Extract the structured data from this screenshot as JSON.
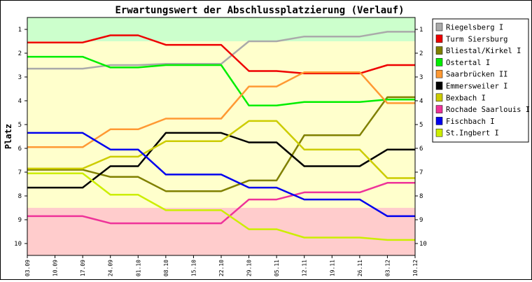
{
  "chart_data": {
    "type": "line",
    "title": "Erwartungswert der Abschlussplatzierung (Verlauf)",
    "xlabel": "",
    "ylabel": "Platz",
    "categories": [
      "03.09",
      "10.09",
      "17.09",
      "24.09",
      "01.10",
      "08.10",
      "15.10",
      "22.10",
      "29.10",
      "05.11",
      "12.11",
      "19.11",
      "26.11",
      "03.12",
      "10.12"
    ],
    "ylim": [
      0.5,
      10.5
    ],
    "y_inverted": true,
    "yticks": [
      "1",
      "2",
      "3",
      "4",
      "5",
      "6",
      "7",
      "8",
      "9",
      "10"
    ],
    "grid": false,
    "legend_position": "right",
    "bands": [
      {
        "from": 0.5,
        "to": 1.5,
        "color": "#ccffcc"
      },
      {
        "from": 1.5,
        "to": 8.5,
        "color": "#ffffcc"
      },
      {
        "from": 8.5,
        "to": 10.5,
        "color": "#ffcccc"
      }
    ],
    "series": [
      {
        "name": "Riegelsberg I",
        "color": "#aaaaaa",
        "values": [
          2.65,
          2.65,
          2.65,
          2.5,
          2.5,
          2.45,
          2.45,
          2.45,
          1.5,
          1.5,
          1.3,
          1.3,
          1.3,
          1.1,
          1.1
        ]
      },
      {
        "name": "Turm Siersburg",
        "color": "#ee0000",
        "values": [
          1.55,
          1.55,
          1.55,
          1.25,
          1.25,
          1.65,
          1.65,
          1.65,
          2.75,
          2.75,
          2.85,
          2.85,
          2.85,
          2.5,
          2.5
        ]
      },
      {
        "name": "Bliestal/Kirkel I",
        "color": "#808000",
        "values": [
          6.9,
          6.9,
          6.9,
          7.2,
          7.2,
          7.8,
          7.8,
          7.8,
          7.35,
          7.35,
          5.45,
          5.45,
          5.45,
          3.85,
          3.85
        ]
      },
      {
        "name": "Ostertal I",
        "color": "#00ee00",
        "values": [
          2.15,
          2.15,
          2.15,
          2.6,
          2.6,
          2.5,
          2.5,
          2.5,
          4.2,
          4.2,
          4.05,
          4.05,
          4.05,
          3.95,
          3.95
        ]
      },
      {
        "name": "Saarbrücken II",
        "color": "#ff9933",
        "values": [
          5.95,
          5.95,
          5.95,
          5.2,
          5.2,
          4.75,
          4.75,
          4.75,
          3.4,
          3.4,
          2.8,
          2.8,
          2.8,
          4.1,
          4.1
        ]
      },
      {
        "name": "Emmersweiler I",
        "color": "#000000",
        "values": [
          7.65,
          7.65,
          7.65,
          6.75,
          6.75,
          5.35,
          5.35,
          5.35,
          5.75,
          5.75,
          6.75,
          6.75,
          6.75,
          6.05,
          6.05
        ]
      },
      {
        "name": "Bexbach I",
        "color": "#cccc00",
        "values": [
          6.85,
          6.85,
          6.85,
          6.35,
          6.35,
          5.7,
          5.7,
          5.7,
          4.85,
          4.85,
          6.05,
          6.05,
          6.05,
          7.25,
          7.25
        ]
      },
      {
        "name": "Rochade Saarlouis I",
        "color": "#ee3399",
        "values": [
          8.85,
          8.85,
          8.85,
          9.15,
          9.15,
          9.15,
          9.15,
          9.15,
          8.15,
          8.15,
          7.85,
          7.85,
          7.85,
          7.45,
          7.45
        ]
      },
      {
        "name": "Fischbach I",
        "color": "#0000ee",
        "values": [
          5.35,
          5.35,
          5.35,
          6.05,
          6.05,
          7.1,
          7.1,
          7.1,
          7.65,
          7.65,
          8.15,
          8.15,
          8.15,
          8.85,
          8.85
        ]
      },
      {
        "name": "St.Ingbert I",
        "color": "#ccee00",
        "values": [
          7.05,
          7.05,
          7.05,
          7.95,
          7.95,
          8.6,
          8.6,
          8.6,
          9.4,
          9.4,
          9.75,
          9.75,
          9.75,
          9.85,
          9.85
        ]
      }
    ]
  }
}
